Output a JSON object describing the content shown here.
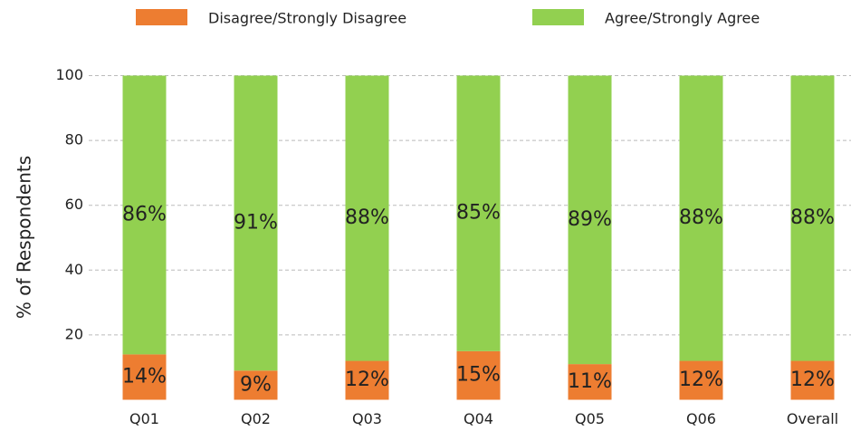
{
  "chart_data": {
    "type": "stacked_bar",
    "categories": [
      "Q01",
      "Q02",
      "Q03",
      "Q04",
      "Q05",
      "Q06",
      "Overall"
    ],
    "series": [
      {
        "name": "Disagree/Strongly Disagree",
        "color": "#ed7d31",
        "values": [
          14,
          9,
          12,
          15,
          11,
          12,
          12
        ],
        "value_labels": [
          "14%",
          "9%",
          "12%",
          "15%",
          "11%",
          "12%",
          "12%"
        ]
      },
      {
        "name": "Agree/Strongly Agree",
        "color": "#92d050",
        "values": [
          86,
          91,
          88,
          85,
          89,
          88,
          88
        ],
        "value_labels": [
          "86%",
          "91%",
          "88%",
          "85%",
          "89%",
          "88%",
          "88%"
        ]
      }
    ],
    "ylabel": "% of Respondents",
    "ylim": [
      0,
      100
    ],
    "yticks": [
      20,
      40,
      60,
      80,
      100
    ],
    "grid": true,
    "legend": "top"
  }
}
